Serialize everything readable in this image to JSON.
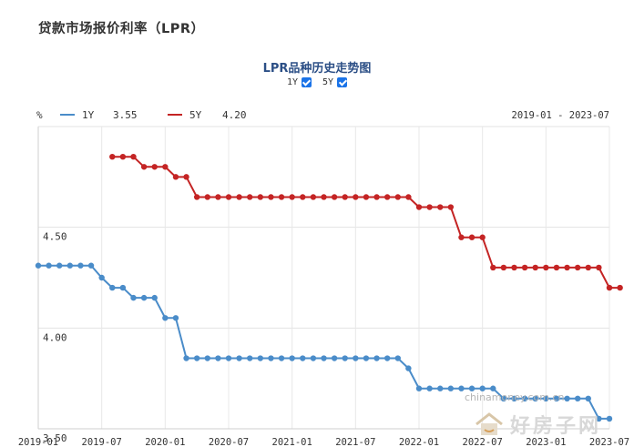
{
  "page_title": "贷款市场报价利率（LPR）",
  "chart_data": {
    "type": "line",
    "title": "LPR品种历史走势图",
    "unit": "%",
    "date_range": "2019-01 - 2023-07",
    "toggles": [
      {
        "label": "1Y",
        "checked": true
      },
      {
        "label": "5Y",
        "checked": true
      }
    ],
    "series": [
      {
        "name": "1Y",
        "latest": "3.55",
        "color": "#4a8cc9",
        "values": [
          4.31,
          4.31,
          4.31,
          4.31,
          4.31,
          4.31,
          4.25,
          4.2,
          4.2,
          4.15,
          4.15,
          4.15,
          4.05,
          4.05,
          3.85,
          3.85,
          3.85,
          3.85,
          3.85,
          3.85,
          3.85,
          3.85,
          3.85,
          3.85,
          3.85,
          3.85,
          3.85,
          3.85,
          3.85,
          3.85,
          3.85,
          3.85,
          3.85,
          3.85,
          3.85,
          3.8,
          3.7,
          3.7,
          3.7,
          3.7,
          3.7,
          3.7,
          3.7,
          3.7,
          3.65,
          3.65,
          3.65,
          3.65,
          3.65,
          3.65,
          3.65,
          3.65,
          3.65,
          3.55,
          3.55
        ]
      },
      {
        "name": "5Y",
        "latest": "4.20",
        "color": "#c42424",
        "start_index": 7,
        "values": [
          4.85,
          4.85,
          4.85,
          4.8,
          4.8,
          4.8,
          4.75,
          4.75,
          4.65,
          4.65,
          4.65,
          4.65,
          4.65,
          4.65,
          4.65,
          4.65,
          4.65,
          4.65,
          4.65,
          4.65,
          4.65,
          4.65,
          4.65,
          4.65,
          4.65,
          4.65,
          4.65,
          4.65,
          4.65,
          4.6,
          4.6,
          4.6,
          4.6,
          4.45,
          4.45,
          4.45,
          4.3,
          4.3,
          4.3,
          4.3,
          4.3,
          4.3,
          4.3,
          4.3,
          4.3,
          4.3,
          4.3,
          4.2,
          4.2
        ]
      }
    ],
    "yticks": [
      "4.50",
      "4.00",
      "3.50"
    ],
    "ylim": [
      3.5,
      5.0
    ],
    "x_tick_labels": [
      "2019-01",
      "2019-07",
      "2020-01",
      "2020-07",
      "2021-01",
      "2021-07",
      "2022-01",
      "2022-07",
      "2023-01",
      "2023-07"
    ],
    "grid": true
  },
  "watermark": "chinamoney.com.cn",
  "logo_text": "好房子网"
}
